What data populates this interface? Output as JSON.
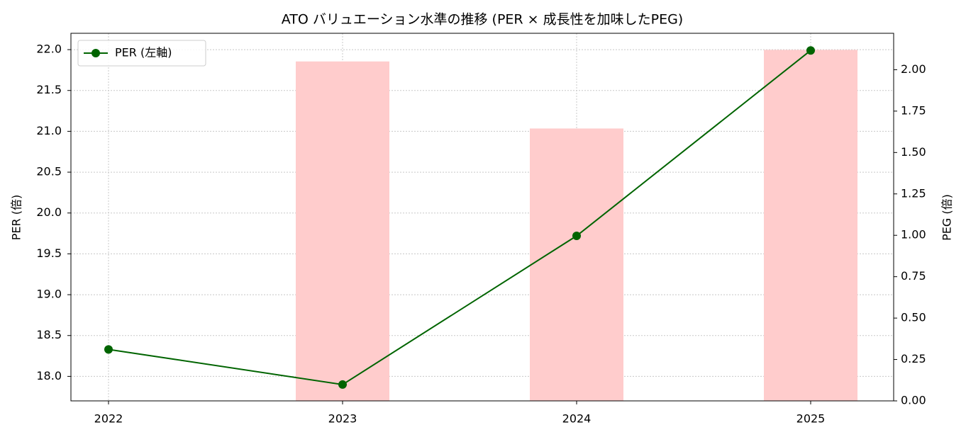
{
  "chart_data": {
    "type": "line",
    "title": "ATO バリュエーション水準の推移 (PER × 成長性を加味したPEG)",
    "categories": [
      "2022",
      "2023",
      "2024",
      "2025"
    ],
    "ylabel": "PER (倍)",
    "y2label": "PEG (倍)",
    "ylim": [
      17.7,
      22.2
    ],
    "yticks": [
      {
        "value": 18,
        "label": "18.0"
      },
      18.5,
      {
        "value": 19,
        "label": "19.0"
      },
      19.5,
      {
        "value": 20,
        "label": "20.0"
      },
      20.5,
      {
        "value": 21,
        "label": "21.0"
      },
      21.5,
      {
        "value": 22,
        "label": "22.0"
      }
    ],
    "y2lim": [
      0,
      2.22
    ],
    "y2ticks": [
      {
        "value": 0,
        "label": "0.00"
      },
      {
        "value": 0.25,
        "label": "0.25"
      },
      {
        "value": 0.5,
        "label": "0.50"
      },
      {
        "value": 0.75,
        "label": "0.75"
      },
      {
        "value": 1,
        "label": "1.00"
      },
      {
        "value": 1.25,
        "label": "1.25"
      },
      {
        "value": 1.5,
        "label": "1.50"
      },
      {
        "value": 1.75,
        "label": "1.75"
      },
      {
        "value": 2,
        "label": "2.00"
      }
    ],
    "grid": true,
    "legend": "upper left",
    "series": [
      {
        "name": "PER (左軸)",
        "type": "line",
        "color": "#006400",
        "values": [
          18.33,
          17.9,
          19.72,
          21.99
        ]
      },
      {
        "type": "bar",
        "axis": "y2",
        "color": "#ffcccc",
        "values": [
          null,
          2.05,
          1.645,
          2.12
        ]
      }
    ]
  }
}
